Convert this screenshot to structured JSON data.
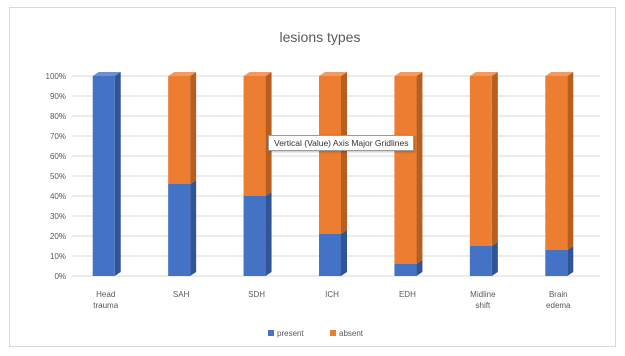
{
  "chart_data": {
    "type": "bar",
    "stacked": true,
    "percent_stacked": true,
    "three_d": true,
    "title": "lesions types",
    "categories": [
      "Head trauma",
      "SAH",
      "SDH",
      "ICH",
      "EDH",
      "Midline shift",
      "Brain edema"
    ],
    "category_lines": [
      [
        "Head",
        "trauma"
      ],
      [
        "SAH"
      ],
      [
        "SDH"
      ],
      [
        "ICH"
      ],
      [
        "EDH"
      ],
      [
        "Midline",
        "shift"
      ],
      [
        "Brain",
        "edema"
      ]
    ],
    "series": [
      {
        "name": "present",
        "values": [
          100,
          46,
          40,
          21,
          6,
          15,
          13
        ]
      },
      {
        "name": "absent",
        "values": [
          0,
          54,
          60,
          79,
          94,
          85,
          87
        ]
      }
    ],
    "ylim": [
      0,
      100
    ],
    "yticks": [
      "0%",
      "10%",
      "20%",
      "30%",
      "40%",
      "50%",
      "60%",
      "70%",
      "80%",
      "90%",
      "100%"
    ],
    "grid": true,
    "legend_position": "bottom",
    "tooltip": "Vertical (Value) Axis Major Gridlines",
    "colors": {
      "present": "#4472c4",
      "present_side": "#2f5597",
      "present_top": "#6a8fd4",
      "absent": "#ed7d31",
      "absent_side": "#b85f20",
      "absent_top": "#f29a5f",
      "gridline": "#d9d9d9",
      "text": "#595959"
    }
  }
}
